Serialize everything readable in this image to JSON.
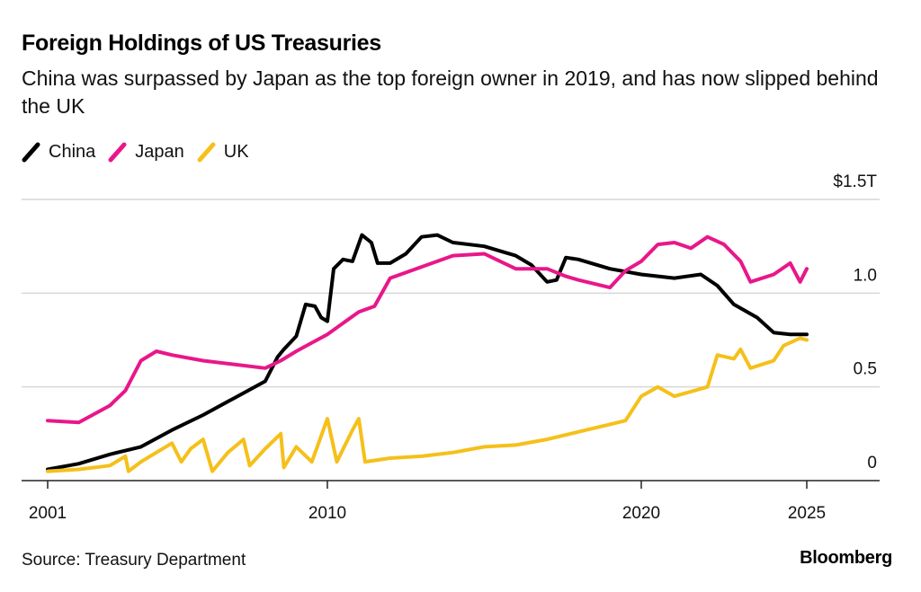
{
  "header": {
    "title": "Foreign Holdings of US Treasuries",
    "subtitle": "China was surpassed by Japan as the top foreign owner in 2019, and has now slipped behind the UK"
  },
  "footer": {
    "source": "Source: Treasury Department",
    "brand": "Bloomberg"
  },
  "legend": [
    {
      "label": "China",
      "color": "#000000",
      "icon": "diagonal-line-icon"
    },
    {
      "label": "Japan",
      "color": "#e8178a",
      "icon": "diagonal-line-icon"
    },
    {
      "label": "UK",
      "color": "#f5c01a",
      "icon": "diagonal-line-icon"
    }
  ],
  "chart_data": {
    "type": "line",
    "title": "Foreign Holdings of US Treasuries",
    "subtitle": "China was surpassed by Japan as the top foreign owner in 2019, and has now slipped behind the UK",
    "xlabel": "",
    "ylabel": "",
    "units": "$ trillions",
    "x_ticks": [
      2001,
      2010,
      2020,
      2025
    ],
    "x_tick_labels": [
      "2001",
      "2010",
      "2020",
      "2025"
    ],
    "xlim": [
      2000.1,
      2027.3
    ],
    "y_ticks": [
      0,
      0.5,
      1.0,
      1.5
    ],
    "y_tick_labels": [
      "0",
      "0.5",
      "1.0",
      "$1.5T"
    ],
    "ylim": [
      0,
      1.5
    ],
    "grid": true,
    "legend_position": "top-left",
    "series": [
      {
        "name": "China",
        "color": "#000000",
        "x": [
          2001.0,
          2002.0,
          2003.0,
          2004.0,
          2005.0,
          2006.0,
          2007.0,
          2008.0,
          2008.4,
          2008.6,
          2009.0,
          2009.3,
          2009.6,
          2009.8,
          2010.0,
          2010.2,
          2010.5,
          2010.8,
          2011.1,
          2011.4,
          2011.6,
          2012.0,
          2012.5,
          2013.0,
          2013.5,
          2014.0,
          2015.0,
          2015.6,
          2016.0,
          2016.5,
          2017.0,
          2017.3,
          2017.6,
          2018.0,
          2019.0,
          2020.0,
          2021.0,
          2021.8,
          2022.3,
          2022.8,
          2023.5,
          2024.0,
          2024.5,
          2025.0
        ],
        "values": [
          0.06,
          0.09,
          0.14,
          0.18,
          0.27,
          0.35,
          0.44,
          0.53,
          0.66,
          0.7,
          0.77,
          0.94,
          0.93,
          0.87,
          0.85,
          1.13,
          1.18,
          1.17,
          1.31,
          1.27,
          1.16,
          1.16,
          1.21,
          1.3,
          1.31,
          1.27,
          1.25,
          1.22,
          1.2,
          1.15,
          1.06,
          1.07,
          1.19,
          1.18,
          1.13,
          1.1,
          1.08,
          1.1,
          1.04,
          0.94,
          0.87,
          0.79,
          0.78,
          0.78
        ]
      },
      {
        "name": "Japan",
        "color": "#e8178a",
        "x": [
          2001.0,
          2002.0,
          2003.0,
          2003.5,
          2004.0,
          2004.5,
          2005.0,
          2006.0,
          2007.0,
          2008.0,
          2008.5,
          2009.0,
          2010.0,
          2011.0,
          2011.5,
          2012.0,
          2013.0,
          2014.0,
          2015.0,
          2016.0,
          2017.0,
          2017.6,
          2018.0,
          2019.0,
          2019.5,
          2020.0,
          2020.5,
          2021.0,
          2021.5,
          2022.0,
          2022.5,
          2023.0,
          2023.3,
          2024.0,
          2024.5,
          2024.8,
          2025.0
        ],
        "values": [
          0.32,
          0.31,
          0.4,
          0.48,
          0.64,
          0.69,
          0.67,
          0.64,
          0.62,
          0.6,
          0.64,
          0.69,
          0.78,
          0.9,
          0.93,
          1.08,
          1.14,
          1.2,
          1.21,
          1.13,
          1.13,
          1.09,
          1.07,
          1.03,
          1.12,
          1.17,
          1.26,
          1.27,
          1.24,
          1.3,
          1.26,
          1.17,
          1.06,
          1.1,
          1.16,
          1.06,
          1.13
        ]
      },
      {
        "name": "UK",
        "color": "#f5c01a",
        "x": [
          2001.0,
          2002.0,
          2003.0,
          2003.5,
          2003.6,
          2004.0,
          2004.5,
          2005.0,
          2005.3,
          2005.6,
          2006.0,
          2006.3,
          2006.8,
          2007.3,
          2007.5,
          2008.0,
          2008.5,
          2008.6,
          2009.0,
          2009.5,
          2010.0,
          2010.3,
          2010.8,
          2011.0,
          2011.2,
          2012.0,
          2013.0,
          2014.0,
          2015.0,
          2016.0,
          2017.0,
          2018.0,
          2019.0,
          2019.5,
          2020.0,
          2020.5,
          2021.0,
          2022.0,
          2022.3,
          2022.8,
          2023.0,
          2023.3,
          2024.0,
          2024.3,
          2024.8,
          2025.0
        ],
        "values": [
          0.05,
          0.06,
          0.08,
          0.13,
          0.05,
          0.1,
          0.15,
          0.2,
          0.1,
          0.17,
          0.22,
          0.05,
          0.15,
          0.22,
          0.08,
          0.17,
          0.25,
          0.07,
          0.18,
          0.1,
          0.33,
          0.1,
          0.27,
          0.33,
          0.1,
          0.12,
          0.13,
          0.15,
          0.18,
          0.19,
          0.22,
          0.26,
          0.3,
          0.32,
          0.45,
          0.5,
          0.45,
          0.5,
          0.67,
          0.65,
          0.7,
          0.6,
          0.64,
          0.72,
          0.76,
          0.75
        ]
      }
    ]
  }
}
